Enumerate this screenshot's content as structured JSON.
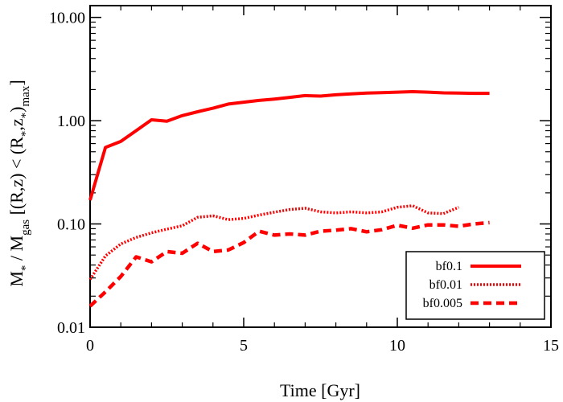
{
  "chart_data": {
    "type": "line",
    "xlabel": "Time [Gyr]",
    "ylabel": "M* / Mgas [(R,z) < (R*,z*)max]",
    "xlim": [
      0,
      15
    ],
    "ylim": [
      0.01,
      13
    ],
    "yscale": "log",
    "x_ticks": [
      0,
      5,
      10,
      15
    ],
    "x_tick_labels": [
      "0",
      "5",
      "10",
      "15"
    ],
    "y_ticks": [
      0.01,
      0.1,
      1.0,
      10.0
    ],
    "y_tick_labels": [
      "0.01",
      "0.10",
      "1.00",
      "10.00"
    ],
    "legend_position": "bottom-right",
    "colors": {
      "series": "#ff0000",
      "axes": "#000000"
    },
    "series": [
      {
        "name": "bf0.1",
        "style": "solid",
        "x": [
          0,
          0.5,
          1.0,
          1.5,
          2.0,
          2.5,
          3.0,
          3.5,
          4.0,
          4.5,
          5.0,
          5.5,
          6.0,
          6.5,
          7.0,
          7.5,
          8.0,
          8.5,
          9.0,
          9.5,
          10.0,
          10.5,
          11.0,
          11.5,
          12.0,
          12.5,
          13.0
        ],
        "values": [
          0.17,
          0.55,
          0.63,
          0.8,
          1.02,
          0.99,
          1.12,
          1.22,
          1.32,
          1.45,
          1.51,
          1.57,
          1.62,
          1.68,
          1.75,
          1.73,
          1.78,
          1.82,
          1.85,
          1.87,
          1.89,
          1.91,
          1.89,
          1.86,
          1.85,
          1.84,
          1.84
        ]
      },
      {
        "name": "bf0.01",
        "style": "dotted",
        "x": [
          0,
          0.5,
          1.0,
          1.5,
          2.0,
          2.5,
          3.0,
          3.5,
          4.0,
          4.5,
          5.0,
          5.5,
          6.0,
          6.5,
          7.0,
          7.5,
          8.0,
          8.5,
          9.0,
          9.5,
          10.0,
          10.5,
          11.0,
          11.5,
          12.0
        ],
        "values": [
          0.029,
          0.049,
          0.064,
          0.074,
          0.082,
          0.089,
          0.096,
          0.116,
          0.12,
          0.11,
          0.113,
          0.122,
          0.13,
          0.138,
          0.142,
          0.131,
          0.128,
          0.131,
          0.128,
          0.131,
          0.145,
          0.15,
          0.128,
          0.126,
          0.145
        ]
      },
      {
        "name": "bf0.005",
        "style": "dashed",
        "x": [
          0,
          0.5,
          1.0,
          1.5,
          2.0,
          2.5,
          3.0,
          3.5,
          4.0,
          4.5,
          5.0,
          5.5,
          6.0,
          6.5,
          7.0,
          7.5,
          8.0,
          8.5,
          9.0,
          9.5,
          10.0,
          10.5,
          11.0,
          11.5,
          12.0,
          12.5,
          13.0
        ],
        "values": [
          0.016,
          0.022,
          0.031,
          0.048,
          0.043,
          0.054,
          0.052,
          0.065,
          0.054,
          0.056,
          0.066,
          0.085,
          0.078,
          0.08,
          0.078,
          0.085,
          0.087,
          0.09,
          0.084,
          0.088,
          0.097,
          0.091,
          0.098,
          0.098,
          0.095,
          0.1,
          0.103
        ]
      }
    ]
  }
}
